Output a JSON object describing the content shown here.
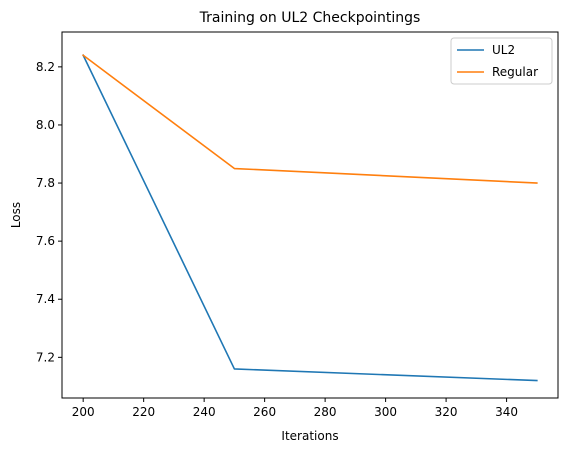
{
  "chart_data": {
    "type": "line",
    "title": "Training on UL2 Checkpointings",
    "xlabel": "Iterations",
    "ylabel": "Loss",
    "xlim": [
      193,
      357
    ],
    "ylim": [
      7.06,
      8.32
    ],
    "xticks": [
      200,
      220,
      240,
      260,
      280,
      300,
      320,
      340
    ],
    "yticks": [
      7.2,
      7.4,
      7.6,
      7.8,
      8.0,
      8.2
    ],
    "grid": false,
    "legend_position": "top-right",
    "x": [
      200,
      250,
      350
    ],
    "series": [
      {
        "name": "UL2",
        "color": "#1f77b4",
        "values": [
          8.24,
          7.16,
          7.12
        ]
      },
      {
        "name": "Regular",
        "color": "#ff7f0e",
        "values": [
          8.24,
          7.85,
          7.8
        ]
      }
    ]
  }
}
